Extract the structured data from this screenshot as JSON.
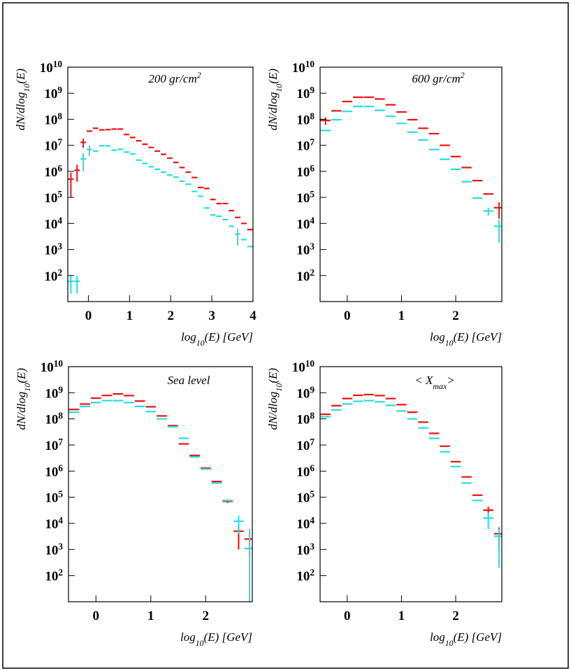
{
  "chart_data": [
    {
      "type": "histogram",
      "title": "200 gr/cm^{2}",
      "xlabel": "log_{10}(E) [GeV]",
      "ylabel": "dN/dlog_{10}(E)",
      "yscale": "log",
      "xlim": [
        -0.5,
        4
      ],
      "ylim": [
        10,
        10000000000
      ],
      "xticks": [
        0,
        1,
        2,
        3,
        4
      ],
      "yticks": [
        {
          "value": 100,
          "label": "10^{2}"
        },
        {
          "value": 1000,
          "label": "10^{3}"
        },
        {
          "value": 10000,
          "label": "10^{4}"
        },
        {
          "value": 100000,
          "label": "10^{5}"
        },
        {
          "value": 1000000,
          "label": "10^{6}"
        },
        {
          "value": 10000000,
          "label": "10^{7}"
        },
        {
          "value": 100000000,
          "label": "10^{8}"
        },
        {
          "value": 1000000000,
          "label": "10^{9}"
        },
        {
          "value": 10000000000,
          "label": "10^{10}"
        }
      ],
      "bins": [
        -0.5,
        -0.35,
        -0.2,
        -0.05,
        0.1,
        0.25,
        0.4,
        0.55,
        0.7,
        0.85,
        1,
        1.15,
        1.3,
        1.45,
        1.6,
        1.75,
        1.9,
        2.05,
        2.2,
        2.35,
        2.5,
        2.65,
        2.8,
        2.95,
        3.1,
        3.25,
        3.4,
        3.55,
        3.7,
        3.85,
        4
      ],
      "series": [
        {
          "color": "#ee1111",
          "values": [
            500000,
            1100000,
            13000000,
            35000000,
            45000000,
            39000000,
            40000000,
            42000000,
            42000000,
            26000000,
            20000000,
            15000000,
            11000000,
            8300000,
            6000000,
            4500000,
            3200000,
            2200000,
            1400000,
            930000,
            580000,
            240000,
            220000,
            83000,
            58000,
            58000,
            31000,
            17000,
            10000,
            5800
          ],
          "errors": [
            400000,
            700000,
            5000000,
            null,
            null,
            null,
            null,
            null,
            null,
            null,
            null,
            null,
            null,
            null,
            null,
            null,
            null,
            null,
            null,
            null,
            null,
            null,
            null,
            null,
            null,
            null,
            null,
            null,
            null,
            null
          ]
        },
        {
          "color": "#22e0e0",
          "values": [
            60,
            60,
            3000000,
            6900000,
            6000000,
            9600000,
            9500000,
            6500000,
            7000000,
            5500000,
            4700000,
            2700000,
            2000000,
            1500000,
            1200000,
            930000,
            720000,
            600000,
            420000,
            320000,
            170000,
            110000,
            39000,
            21000,
            19000,
            14000,
            7800,
            3900,
            2400,
            1300
          ],
          "errors": [
            40,
            40,
            2000000,
            3000000,
            null,
            null,
            null,
            null,
            null,
            null,
            null,
            null,
            null,
            null,
            null,
            null,
            null,
            null,
            null,
            null,
            null,
            null,
            null,
            null,
            null,
            null,
            null,
            2500,
            null,
            null
          ]
        }
      ]
    },
    {
      "type": "histogram",
      "title": "600 gr/cm^{2}",
      "xlabel": "log_{10}(E) [GeV]",
      "ylabel": "dN/dlog_{10}(E)",
      "yscale": "log",
      "xlim": [
        -0.5,
        2.85
      ],
      "ylim": [
        10,
        10000000000
      ],
      "xticks": [
        0,
        1,
        2
      ],
      "yticks": [
        {
          "value": 100,
          "label": "10^{2}"
        },
        {
          "value": 1000,
          "label": "10^{3}"
        },
        {
          "value": 10000,
          "label": "10^{4}"
        },
        {
          "value": 100000,
          "label": "10^{5}"
        },
        {
          "value": 1000000,
          "label": "10^{6}"
        },
        {
          "value": 10000000,
          "label": "10^{7}"
        },
        {
          "value": 100000000,
          "label": "10^{8}"
        },
        {
          "value": 1000000000,
          "label": "10^{9}"
        },
        {
          "value": 10000000000,
          "label": "10^{10}"
        }
      ],
      "bins": [
        -0.5,
        -0.3,
        -0.1,
        0.1,
        0.3,
        0.5,
        0.7,
        0.9,
        1.1,
        1.3,
        1.5,
        1.7,
        1.9,
        2.1,
        2.3,
        2.5,
        2.7,
        2.9
      ],
      "series": [
        {
          "color": "#ee1111",
          "values": [
            90000000,
            210000000,
            480000000,
            700000000,
            700000000,
            600000000,
            360000000,
            190000000,
            96000000,
            45000000,
            28000000,
            10000000,
            3700000,
            1400000,
            440000,
            135000,
            40000
          ],
          "errors": [
            30000000,
            null,
            null,
            null,
            null,
            null,
            null,
            null,
            null,
            null,
            null,
            null,
            null,
            null,
            null,
            null,
            25000
          ]
        },
        {
          "color": "#22e0e0",
          "values": [
            37000000,
            96000000,
            200000000,
            310000000,
            310000000,
            220000000,
            130000000,
            69000000,
            32000000,
            16000000,
            6900000,
            2900000,
            1200000,
            400000,
            94000,
            30000,
            7800
          ],
          "errors": [
            null,
            null,
            null,
            null,
            null,
            null,
            null,
            null,
            null,
            null,
            null,
            null,
            null,
            null,
            null,
            10000,
            6000
          ]
        }
      ]
    },
    {
      "type": "histogram",
      "title": "Sea level",
      "xlabel": "log_{10}(E) [GeV]",
      "ylabel": "dN/dlog_{10}(E)",
      "yscale": "log",
      "xlim": [
        -0.5,
        2.85
      ],
      "ylim": [
        10,
        10000000000
      ],
      "xticks": [
        0,
        1,
        2
      ],
      "yticks": [
        {
          "value": 100,
          "label": "10^{2}"
        },
        {
          "value": 1000,
          "label": "10^{3}"
        },
        {
          "value": 10000,
          "label": "10^{4}"
        },
        {
          "value": 100000,
          "label": "10^{5}"
        },
        {
          "value": 1000000,
          "label": "10^{6}"
        },
        {
          "value": 10000000,
          "label": "10^{7}"
        },
        {
          "value": 100000000,
          "label": "10^{8}"
        },
        {
          "value": 1000000000,
          "label": "10^{9}"
        },
        {
          "value": 10000000000,
          "label": "10^{10}"
        }
      ],
      "bins": [
        -0.5,
        -0.3,
        -0.1,
        0.1,
        0.3,
        0.5,
        0.7,
        0.9,
        1.1,
        1.3,
        1.5,
        1.7,
        1.9,
        2.1,
        2.3,
        2.5,
        2.7,
        2.9
      ],
      "series": [
        {
          "color": "#ee1111",
          "values": [
            230000000,
            370000000,
            620000000,
            790000000,
            900000000,
            780000000,
            480000000,
            290000000,
            130000000,
            55000000,
            11000000,
            4000000,
            1300000,
            400000,
            70000,
            5000,
            2500
          ],
          "errors": [
            null,
            null,
            null,
            null,
            null,
            null,
            null,
            null,
            null,
            null,
            null,
            null,
            null,
            null,
            10000,
            4000,
            2000
          ]
        },
        {
          "color": "#22e0e0",
          "values": [
            180000000,
            300000000,
            420000000,
            500000000,
            500000000,
            420000000,
            300000000,
            190000000,
            100000000,
            50000000,
            18000000,
            3500000,
            1200000,
            350000,
            75000,
            12000,
            1100
          ],
          "errors": [
            null,
            null,
            null,
            null,
            null,
            null,
            null,
            null,
            null,
            null,
            null,
            null,
            null,
            null,
            null,
            8000,
            5000
          ]
        }
      ]
    },
    {
      "type": "histogram",
      "title": "< X_{max}>",
      "xlabel": "log_{10}(E) [GeV]",
      "ylabel": "dN/dlog_{10}(E)",
      "yscale": "log",
      "xlim": [
        -0.5,
        2.85
      ],
      "ylim": [
        10,
        10000000000
      ],
      "xticks": [
        0,
        1,
        2
      ],
      "yticks": [
        {
          "value": 100,
          "label": "10^{2}"
        },
        {
          "value": 1000,
          "label": "10^{3}"
        },
        {
          "value": 10000,
          "label": "10^{4}"
        },
        {
          "value": 100000,
          "label": "10^{5}"
        },
        {
          "value": 1000000,
          "label": "10^{6}"
        },
        {
          "value": 10000000,
          "label": "10^{7}"
        },
        {
          "value": 100000000,
          "label": "10^{8}"
        },
        {
          "value": 1000000000,
          "label": "10^{9}"
        },
        {
          "value": 10000000000,
          "label": "10^{10}"
        }
      ],
      "bins": [
        -0.5,
        -0.3,
        -0.1,
        0.1,
        0.3,
        0.5,
        0.7,
        0.9,
        1.1,
        1.3,
        1.5,
        1.7,
        1.9,
        2.1,
        2.3,
        2.5,
        2.7,
        2.9
      ],
      "series": [
        {
          "color": "#ee1111",
          "values": [
            150000000,
            320000000,
            600000000,
            800000000,
            850000000,
            780000000,
            600000000,
            350000000,
            180000000,
            75000000,
            28000000,
            9000000,
            2300000,
            600000,
            120000,
            32000,
            4000
          ],
          "errors": [
            null,
            null,
            null,
            null,
            null,
            null,
            null,
            null,
            null,
            null,
            null,
            null,
            null,
            null,
            null,
            12000,
            3000
          ]
        },
        {
          "color": "#22e0e0",
          "values": [
            120000000,
            220000000,
            370000000,
            470000000,
            500000000,
            450000000,
            330000000,
            200000000,
            100000000,
            45000000,
            18000000,
            5500000,
            1500000,
            350000,
            75000,
            16000,
            3200
          ],
          "errors": [
            null,
            null,
            null,
            null,
            null,
            null,
            null,
            null,
            null,
            null,
            null,
            null,
            null,
            null,
            null,
            10000,
            3000
          ]
        }
      ]
    }
  ]
}
